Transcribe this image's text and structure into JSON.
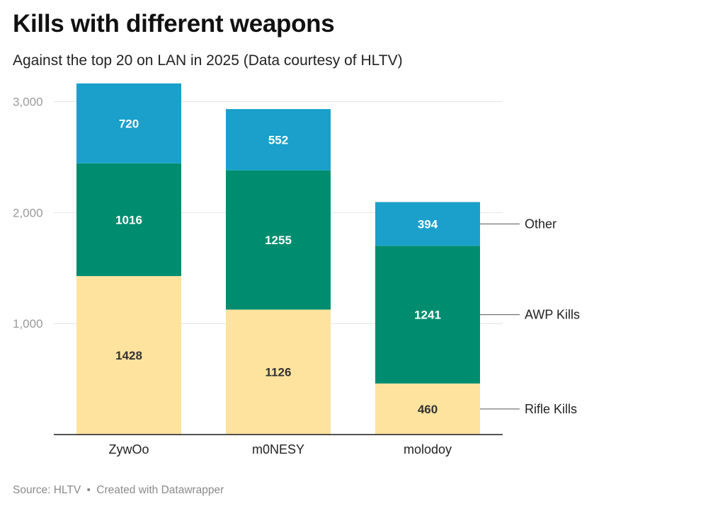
{
  "header": {
    "title": "Kills with different weapons",
    "subtitle": "Against the top 20 on LAN in 2025 (Data courtesy of HLTV)"
  },
  "footer": {
    "source": "Source: HLTV",
    "separator": "•",
    "created": "Created with Datawrapper"
  },
  "colors": {
    "rifle": "#fde39e",
    "awp": "#008d6f",
    "other": "#1aa0ca",
    "grid": "#e4e4e4",
    "axis": "#1a1a1a",
    "tick_label": "#9a9a9a"
  },
  "chart_data": {
    "type": "bar",
    "stacked": true,
    "categories": [
      "ZywOo",
      "m0NESY",
      "molodoy"
    ],
    "series": [
      {
        "name": "Rifle Kills",
        "values": [
          1428,
          1126,
          460
        ]
      },
      {
        "name": "AWP Kills",
        "values": [
          1016,
          1255,
          1241
        ]
      },
      {
        "name": "Other",
        "values": [
          720,
          552,
          394
        ]
      }
    ],
    "y_ticks": [
      1000,
      2000,
      3000
    ],
    "y_tick_labels": [
      "1,000",
      "2,000",
      "3,000"
    ],
    "ylim": [
      0,
      3000
    ],
    "grid": true,
    "legend": "right-inline",
    "data_labels": true
  }
}
